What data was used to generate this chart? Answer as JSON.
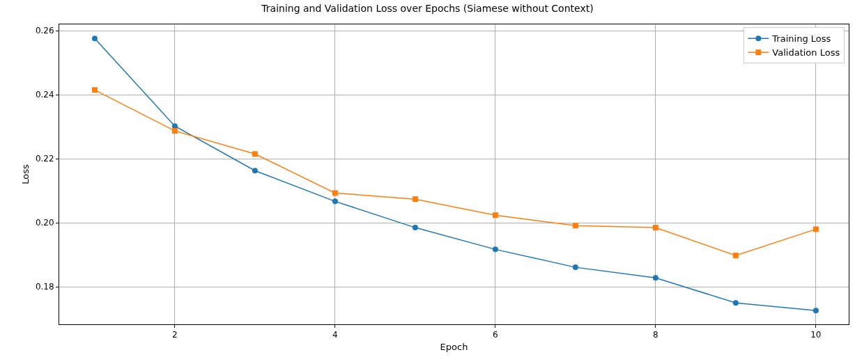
{
  "chart_data": {
    "type": "line",
    "title": "Training and Validation Loss over Epochs (Siamese without Context)",
    "xlabel": "Epoch",
    "ylabel": "Loss",
    "x": [
      1,
      2,
      3,
      4,
      5,
      6,
      7,
      8,
      9,
      10
    ],
    "series": [
      {
        "name": "Training Loss",
        "color": "#1f77b4",
        "marker": "circle",
        "values": [
          0.2576,
          0.2302,
          0.2163,
          0.2067,
          0.1985,
          0.1917,
          0.1861,
          0.1828,
          0.175,
          0.1726
        ]
      },
      {
        "name": "Validation Loss",
        "color": "#ff7f0e",
        "marker": "square",
        "values": [
          0.2415,
          0.2287,
          0.2215,
          0.2093,
          0.2074,
          0.2024,
          0.1991,
          0.1985,
          0.1898,
          0.198
        ]
      }
    ],
    "xlim": [
      0.557,
      10.41
    ],
    "xticks": [
      2,
      4,
      6,
      8,
      10
    ],
    "ylim": [
      0.1683,
      0.262
    ],
    "yticks": [
      {
        "value": 0.18,
        "label": "0.18"
      },
      {
        "value": 0.2,
        "label": "0.20"
      },
      {
        "value": 0.22,
        "label": "0.22"
      },
      {
        "value": 0.24,
        "label": "0.24"
      },
      {
        "value": 0.26,
        "label": "0.26"
      }
    ],
    "grid": true,
    "legend": "top right",
    "line_style": "solid"
  }
}
